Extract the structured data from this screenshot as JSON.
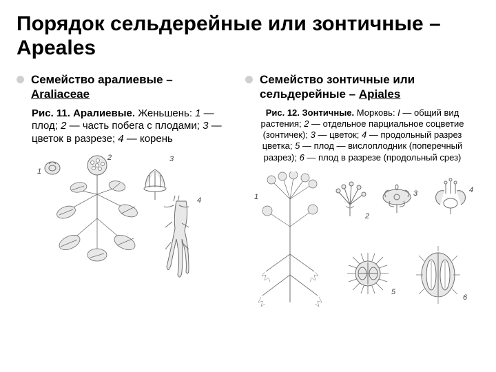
{
  "title": "Порядок сельдерейные или зонтичные – Apeales",
  "left": {
    "family_text": "Семейство аралиевые – ",
    "family_latin": "Araliaceae",
    "desc_html": "<b>Рис. 11. Аралиевые.</b> Женьшень: <i>1</i> — плод; <i>2</i> — часть побега с плодами; <i>3</i> — цветок в разрезе; <i>4</i> — корень"
  },
  "right": {
    "family_text": "Семейство зонтичные или сельдерейные – ",
    "family_latin": "Apiales",
    "desc_html": "<b>Рис. 12. Зонтичные.</b> Морковь: <i>I</i> — общий вид растения; <i>2</i> — отдельное парциальное соцветие (зонтичек); <i>3</i> — цветок; <i>4</i> — продольный разрез цветка; <i>5</i> — плод — вислоплодник (поперечный разрез); <i>6</i> — плод в разрезе (продольный срез)"
  },
  "illustration": {
    "stroke": "#6d6d6d",
    "fill_light": "#e8e8e8",
    "background": "#ffffff",
    "left_labels": [
      "1",
      "2",
      "3",
      "4"
    ],
    "right_labels": [
      "1",
      "2",
      "3",
      "4",
      "5",
      "6"
    ]
  },
  "colors": {
    "text": "#000000",
    "bullet": "#cfcfcf"
  }
}
